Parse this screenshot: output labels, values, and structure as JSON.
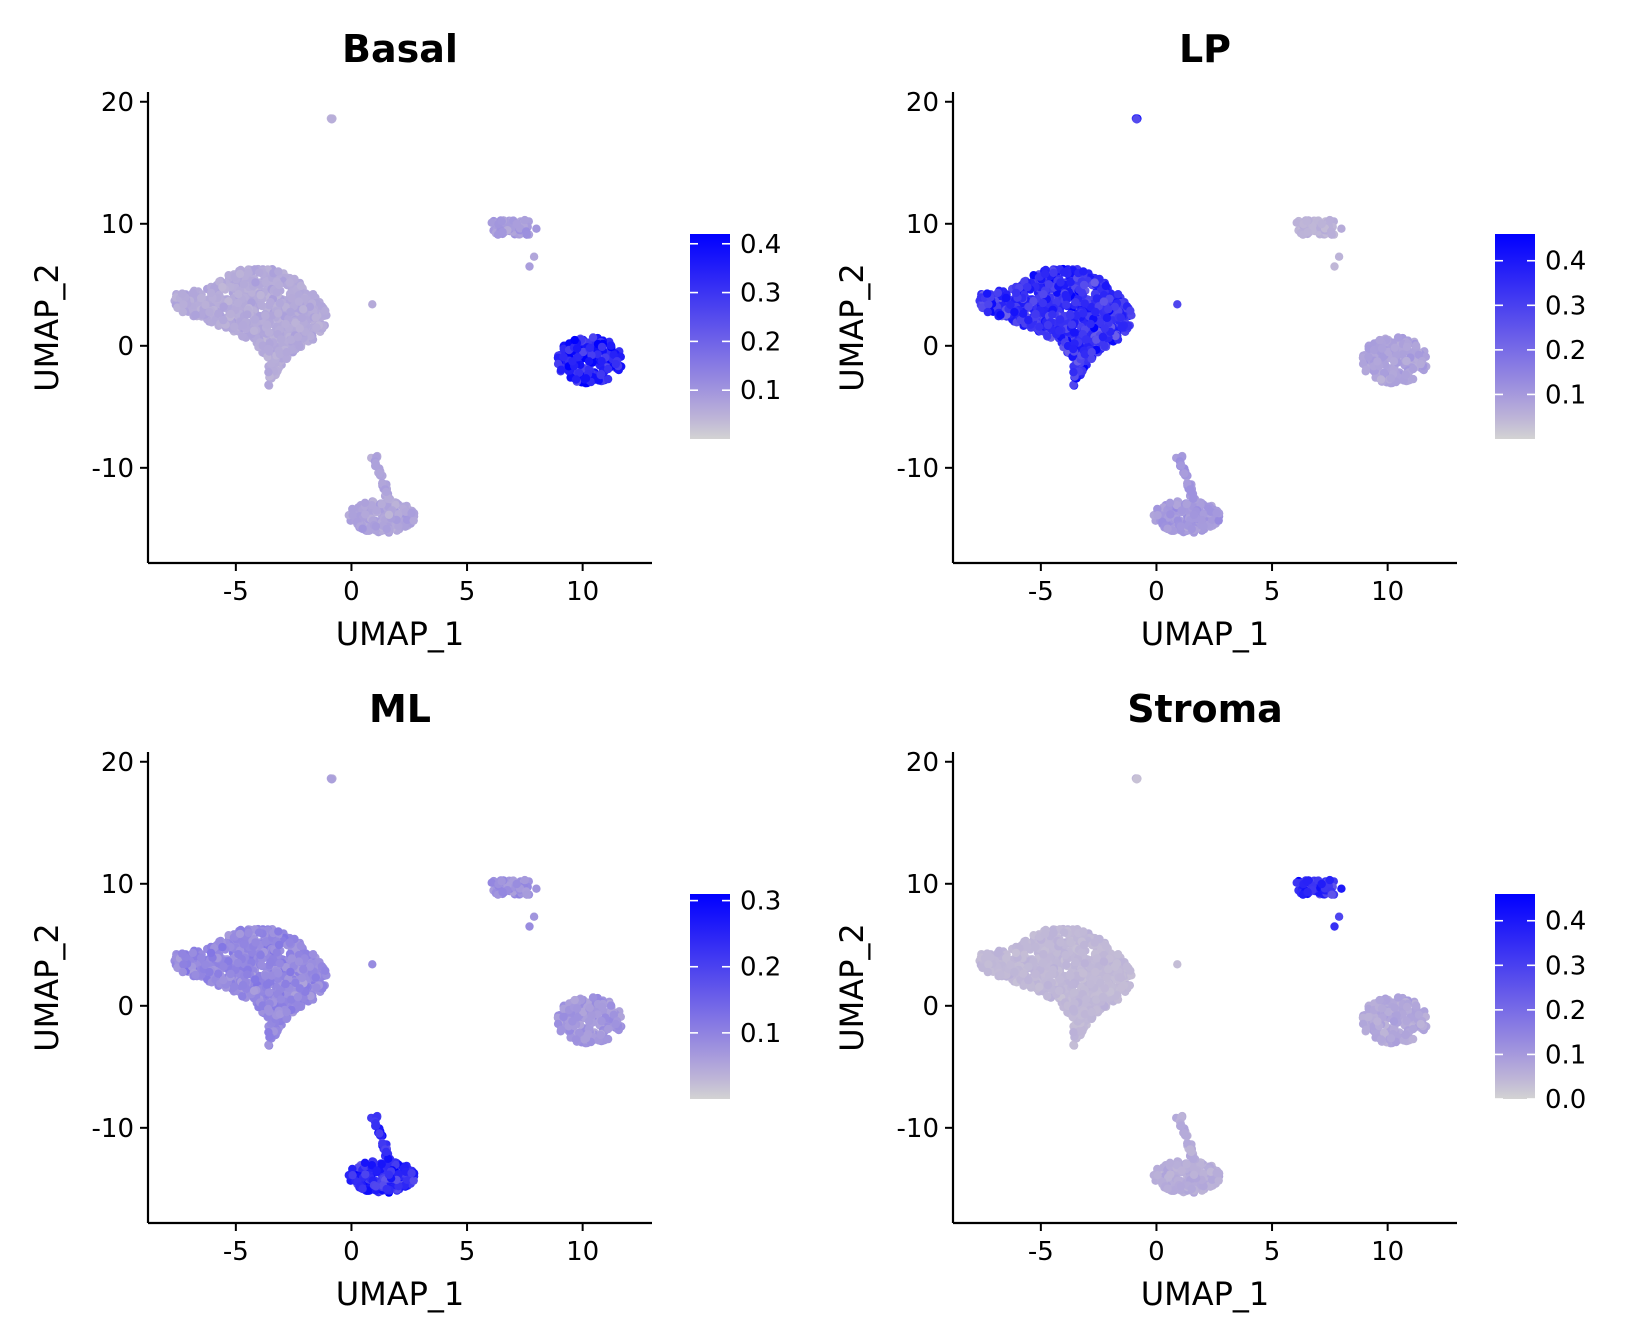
{
  "chart_data": [
    {
      "type": "scatter",
      "title": "Basal",
      "xlabel": "UMAP_1",
      "ylabel": "UMAP_2",
      "xlim": [
        -8.8,
        13
      ],
      "ylim": [
        -17.8,
        20.8
      ],
      "xticks": [
        -5,
        0,
        5,
        10
      ],
      "yticks": [
        -10,
        0,
        10,
        20
      ],
      "xtick_labels": [
        "-5",
        "0",
        "5",
        "10"
      ],
      "ytick_labels": [
        "-10",
        "0",
        "10",
        "20"
      ],
      "colorbar": {
        "min": 0.0,
        "max": 0.42,
        "ticks": [
          0.1,
          0.2,
          0.3,
          0.4
        ],
        "tick_labels": [
          "0.1",
          "0.2",
          "0.3",
          "0.4"
        ],
        "low_color": "#d3d3d3",
        "high_color": "#0000ff"
      },
      "cluster_scores": {
        "lp_main": 0.06,
        "lp_outlier": 0.05,
        "stroma": 0.09,
        "basal": 0.34,
        "ml": 0.07
      }
    },
    {
      "type": "scatter",
      "title": "LP",
      "xlabel": "UMAP_1",
      "ylabel": "UMAP_2",
      "xlim": [
        -8.8,
        13
      ],
      "ylim": [
        -17.8,
        20.8
      ],
      "xticks": [
        -5,
        0,
        5,
        10
      ],
      "yticks": [
        -10,
        0,
        10,
        20
      ],
      "xtick_labels": [
        "-5",
        "0",
        "5",
        "10"
      ],
      "ytick_labels": [
        "-10",
        "0",
        "10",
        "20"
      ],
      "colorbar": {
        "min": 0.0,
        "max": 0.46,
        "ticks": [
          0.1,
          0.2,
          0.3,
          0.4
        ],
        "tick_labels": [
          "0.1",
          "0.2",
          "0.3",
          "0.4"
        ],
        "low_color": "#d3d3d3",
        "high_color": "#0000ff"
      },
      "cluster_scores": {
        "lp_main": 0.34,
        "lp_outlier": 0.38,
        "stroma": 0.05,
        "basal": 0.08,
        "ml": 0.1
      }
    },
    {
      "type": "scatter",
      "title": "ML",
      "xlabel": "UMAP_1",
      "ylabel": "UMAP_2",
      "xlim": [
        -8.8,
        13
      ],
      "ylim": [
        -17.8,
        20.8
      ],
      "xticks": [
        -5,
        0,
        5,
        10
      ],
      "yticks": [
        -10,
        0,
        10,
        20
      ],
      "xtick_labels": [
        "-5",
        "0",
        "5",
        "10"
      ],
      "ytick_labels": [
        "-10",
        "0",
        "10",
        "20"
      ],
      "colorbar": {
        "min": 0.0,
        "max": 0.31,
        "ticks": [
          0.1,
          0.2,
          0.3
        ],
        "tick_labels": [
          "0.1",
          "0.2",
          "0.3"
        ],
        "low_color": "#d3d3d3",
        "high_color": "#0000ff"
      },
      "cluster_scores": {
        "lp_main": 0.09,
        "lp_outlier": 0.06,
        "stroma": 0.08,
        "basal": 0.07,
        "ml": 0.24
      }
    },
    {
      "type": "scatter",
      "title": "Stroma",
      "xlabel": "UMAP_1",
      "ylabel": "UMAP_2",
      "xlim": [
        -8.8,
        13
      ],
      "ylim": [
        -17.8,
        20.8
      ],
      "xticks": [
        -5,
        0,
        5,
        10
      ],
      "yticks": [
        -10,
        0,
        10,
        20
      ],
      "xtick_labels": [
        "-5",
        "0",
        "5",
        "10"
      ],
      "ytick_labels": [
        "-10",
        "0",
        "10",
        "20"
      ],
      "colorbar": {
        "min": 0.0,
        "max": 0.46,
        "ticks": [
          0.0,
          0.1,
          0.2,
          0.3,
          0.4
        ],
        "tick_labels": [
          "0.0",
          "0.1",
          "0.2",
          "0.3",
          "0.4"
        ],
        "low_color": "#d3d3d3",
        "high_color": "#0000ff"
      },
      "cluster_scores": {
        "lp_main": 0.04,
        "lp_outlier": 0.04,
        "stroma": 0.34,
        "basal": 0.07,
        "ml": 0.06
      }
    }
  ]
}
